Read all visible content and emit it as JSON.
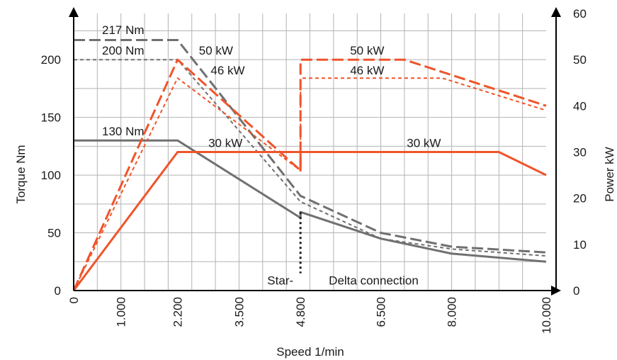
{
  "chart_data": {
    "type": "line",
    "xlabel": "Speed 1/min",
    "ylabel_left": "Torque Nm",
    "ylabel_right": "Power kW",
    "xlim": [
      0,
      10000
    ],
    "ylim_left": [
      0,
      240
    ],
    "ylim_right": [
      0,
      60
    ],
    "x_ticks": [
      {
        "value": 0,
        "label": "0"
      },
      {
        "value": 1000,
        "label": "1.000"
      },
      {
        "value": 2200,
        "label": "2.200"
      },
      {
        "value": 3500,
        "label": "3.500"
      },
      {
        "value": 4800,
        "label": "4.800"
      },
      {
        "value": 6500,
        "label": "6.500"
      },
      {
        "value": 8000,
        "label": "8.000"
      },
      {
        "value": 10000,
        "label": "10.000"
      }
    ],
    "y_left_ticks": [
      0,
      50,
      100,
      150,
      200
    ],
    "y_right_ticks": [
      0,
      10,
      20,
      30,
      40,
      50,
      60
    ],
    "grid": true,
    "colors": {
      "torque": "#707070",
      "power": "#f0542a"
    },
    "series": [
      {
        "axis": "left",
        "style": "dashed",
        "color": "#707070",
        "points": [
          [
            0,
            217
          ],
          [
            2200,
            217
          ],
          [
            4800,
            82
          ],
          [
            6500,
            50
          ],
          [
            8000,
            38
          ],
          [
            10000,
            33
          ]
        ]
      },
      {
        "axis": "left",
        "style": "dotted",
        "color": "#707070",
        "points": [
          [
            0,
            200
          ],
          [
            2200,
            200
          ],
          [
            4800,
            77
          ],
          [
            6500,
            45
          ],
          [
            8000,
            36
          ],
          [
            10000,
            30
          ]
        ]
      },
      {
        "axis": "left",
        "style": "solid",
        "color": "#707070",
        "points": [
          [
            0,
            130
          ],
          [
            2200,
            130
          ],
          [
            4800,
            63
          ],
          [
            4800,
            68
          ],
          [
            6500,
            45
          ],
          [
            8000,
            32
          ],
          [
            10000,
            25
          ]
        ]
      },
      {
        "axis": "right",
        "style": "dashed",
        "color": "#f0542a",
        "points": [
          [
            0,
            0
          ],
          [
            2200,
            50
          ],
          [
            4800,
            26
          ],
          [
            4800,
            50
          ],
          [
            7000,
            50
          ],
          [
            10000,
            40
          ]
        ]
      },
      {
        "axis": "right",
        "style": "dotted",
        "color": "#f0542a",
        "points": [
          [
            0,
            0
          ],
          [
            2200,
            46
          ],
          [
            4800,
            26
          ],
          [
            4800,
            46
          ],
          [
            7800,
            46
          ],
          [
            10000,
            39
          ]
        ]
      },
      {
        "axis": "right",
        "style": "solid",
        "color": "#f0542a",
        "points": [
          [
            0,
            0
          ],
          [
            2200,
            30
          ],
          [
            4800,
            30
          ],
          [
            4800,
            26
          ],
          [
            4800,
            30
          ],
          [
            9000,
            30
          ],
          [
            10000,
            25
          ]
        ]
      }
    ],
    "annotations": [
      {
        "text": "217 Nm",
        "x": 600,
        "y_axis": "left",
        "y": 226
      },
      {
        "text": "200 Nm",
        "x": 600,
        "y_axis": "left",
        "y": 208
      },
      {
        "text": "130 Nm",
        "x": 600,
        "y_axis": "left",
        "y": 138
      },
      {
        "text": "50 kW",
        "x": 2650,
        "y_axis": "left",
        "y": 208
      },
      {
        "text": "46 kW",
        "x": 2900,
        "y_axis": "left",
        "y": 191
      },
      {
        "text": "30 kW",
        "x": 2850,
        "y_axis": "left",
        "y": 128
      },
      {
        "text": "50 kW",
        "x": 5850,
        "y_axis": "left",
        "y": 208
      },
      {
        "text": "46 kW",
        "x": 5850,
        "y_axis": "left",
        "y": 191
      },
      {
        "text": "30 kW",
        "x": 7050,
        "y_axis": "left",
        "y": 128
      },
      {
        "text": "Star-",
        "x": 4650,
        "y_axis": "left",
        "y": 9,
        "anchor": "end"
      },
      {
        "text": "Delta connection",
        "x": 5400,
        "y_axis": "left",
        "y": 9,
        "anchor": "start"
      }
    ],
    "star_delta_marker": {
      "x": 4800,
      "from": 68,
      "to": 15
    }
  }
}
